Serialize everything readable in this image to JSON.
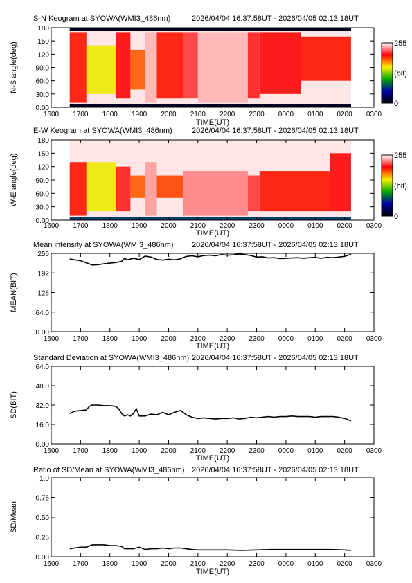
{
  "time_range": "2026/04/04 16:37:58UT - 2026/04/05 02:13:18UT",
  "x_axis": {
    "label": "TIME(UT)",
    "ticks": [
      "1600",
      "1700",
      "1800",
      "1900",
      "2000",
      "2100",
      "2200",
      "2300",
      "0000",
      "0100",
      "0200",
      "0300"
    ]
  },
  "colorbar": {
    "max_label": "255",
    "unit_label": "(bit)",
    "min_label": "0"
  },
  "chart_data": [
    {
      "type": "heatmap",
      "title": "S-N Keogram at SYOWA(WMI3_486nm)",
      "ylabel": "N-S angle(deg)",
      "yticks": [
        "0.00",
        "30.0",
        "60.0",
        "90.0",
        "120",
        "150",
        "180"
      ],
      "ylim": [
        0,
        180
      ],
      "xlim_hours": [
        16.0,
        27.0
      ],
      "data_range_hours": [
        16.63,
        26.22
      ],
      "colorscale": {
        "min": 0,
        "max": 255,
        "colors": [
          "#000000",
          "#0000aa",
          "#00aa00",
          "#ffee00",
          "#ff0000",
          "#ffffff"
        ]
      },
      "blocks": [
        {
          "t": [
            16.63,
            17.2
          ],
          "angle": [
            10,
            170
          ],
          "value": 200
        },
        {
          "t": [
            17.2,
            18.2
          ],
          "angle": [
            30,
            140
          ],
          "value": 150
        },
        {
          "t": [
            18.2,
            18.7
          ],
          "angle": [
            20,
            170
          ],
          "value": 205
        },
        {
          "t": [
            18.7,
            19.2
          ],
          "angle": [
            40,
            130
          ],
          "value": 185
        },
        {
          "t": [
            19.2,
            19.6
          ],
          "angle": [
            10,
            170
          ],
          "value": 240
        },
        {
          "t": [
            19.6,
            20.5
          ],
          "angle": [
            20,
            170
          ],
          "value": 200
        },
        {
          "t": [
            20.5,
            21.0
          ],
          "angle": [
            20,
            170
          ],
          "value": 215
        },
        {
          "t": [
            21.0,
            22.7
          ],
          "angle": [
            10,
            170
          ],
          "value": 240
        },
        {
          "t": [
            22.7,
            23.1
          ],
          "angle": [
            20,
            170
          ],
          "value": 210
        },
        {
          "t": [
            23.1,
            24.5
          ],
          "angle": [
            30,
            170
          ],
          "value": 205
        },
        {
          "t": [
            24.5,
            26.22
          ],
          "angle": [
            60,
            160
          ],
          "value": 200
        }
      ],
      "bottom_band_value": 10,
      "top_band_value": 10
    },
    {
      "type": "heatmap",
      "title": "E-W Keogram at SYOWA(WMI3_486nm)",
      "ylabel": "W-E angle(deg)",
      "yticks": [
        "0.00",
        "30.0",
        "60.0",
        "90.0",
        "120",
        "150",
        "180"
      ],
      "ylim": [
        0,
        180
      ],
      "xlim_hours": [
        16.0,
        27.0
      ],
      "data_range_hours": [
        16.63,
        26.22
      ],
      "colorscale": {
        "min": 0,
        "max": 255,
        "colors": [
          "#000000",
          "#0000aa",
          "#00aa00",
          "#ffee00",
          "#ff0000",
          "#ffffff"
        ]
      },
      "blocks": [
        {
          "t": [
            16.63,
            17.2
          ],
          "angle": [
            10,
            130
          ],
          "value": 200
        },
        {
          "t": [
            17.2,
            18.2
          ],
          "angle": [
            20,
            130
          ],
          "value": 150
        },
        {
          "t": [
            18.2,
            18.7
          ],
          "angle": [
            20,
            120
          ],
          "value": 210
        },
        {
          "t": [
            18.7,
            19.2
          ],
          "angle": [
            50,
            100
          ],
          "value": 185
        },
        {
          "t": [
            19.2,
            19.6
          ],
          "angle": [
            10,
            130
          ],
          "value": 235
        },
        {
          "t": [
            19.6,
            20.5
          ],
          "angle": [
            50,
            100
          ],
          "value": 190
        },
        {
          "t": [
            20.5,
            22.7
          ],
          "angle": [
            10,
            110
          ],
          "value": 230
        },
        {
          "t": [
            22.7,
            23.1
          ],
          "angle": [
            20,
            100
          ],
          "value": 215
        },
        {
          "t": [
            23.1,
            25.5
          ],
          "angle": [
            20,
            110
          ],
          "value": 200
        },
        {
          "t": [
            25.5,
            26.22
          ],
          "angle": [
            20,
            150
          ],
          "value": 205
        }
      ],
      "bottom_band_value": 70
    },
    {
      "type": "line",
      "title": "Mean intensity at SYOWA(WMI3_486nm)",
      "ylabel": "MEAN(BIT)",
      "yticks": [
        "0.00",
        "64.0",
        "128",
        "192",
        "256"
      ],
      "ylim": [
        0,
        256
      ],
      "xlim_hours": [
        16.0,
        27.0
      ],
      "series": [
        {
          "x": [
            16.63,
            16.8,
            17.0,
            17.2,
            17.4,
            17.6,
            17.8,
            18.0,
            18.2,
            18.4,
            18.5,
            18.6,
            18.8,
            19.0,
            19.2,
            19.4,
            19.6,
            19.8,
            20.0,
            20.2,
            20.4,
            20.6,
            20.8,
            21.0,
            21.2,
            21.4,
            21.6,
            21.8,
            22.0,
            22.2,
            22.4,
            22.6,
            22.8,
            23.0,
            23.2,
            23.4,
            23.6,
            23.8,
            24.0,
            24.2,
            24.4,
            24.6,
            24.8,
            25.0,
            25.2,
            25.4,
            25.6,
            25.8,
            26.0,
            26.22
          ],
          "y": [
            238,
            235,
            232,
            225,
            218,
            219,
            222,
            224,
            226,
            230,
            240,
            235,
            240,
            236,
            247,
            244,
            236,
            234,
            237,
            235,
            238,
            246,
            248,
            245,
            249,
            250,
            248,
            252,
            250,
            251,
            254,
            252,
            249,
            244,
            245,
            241,
            242,
            239,
            240,
            241,
            242,
            240,
            242,
            243,
            240,
            243,
            242,
            244,
            246,
            253
          ]
        }
      ]
    },
    {
      "type": "line",
      "title": "Standard Deviation at SYOWA(WMI3_486nm)",
      "ylabel": "SD(BIT)",
      "yticks": [
        "0.00",
        "16.0",
        "32.0",
        "48.0",
        "64.0"
      ],
      "ylim": [
        0,
        64
      ],
      "xlim_hours": [
        16.0,
        27.0
      ],
      "series": [
        {
          "x": [
            16.63,
            16.8,
            17.0,
            17.2,
            17.3,
            17.4,
            17.6,
            17.8,
            18.0,
            18.2,
            18.3,
            18.4,
            18.5,
            18.6,
            18.7,
            18.8,
            18.9,
            19.0,
            19.2,
            19.4,
            19.6,
            19.8,
            20.0,
            20.2,
            20.4,
            20.5,
            20.6,
            20.8,
            21.0,
            21.2,
            21.4,
            21.6,
            21.8,
            22.0,
            22.2,
            22.4,
            22.6,
            22.8,
            23.0,
            23.2,
            23.4,
            23.6,
            23.8,
            24.0,
            24.2,
            24.4,
            24.6,
            24.8,
            25.0,
            25.2,
            25.4,
            25.6,
            25.8,
            26.0,
            26.22
          ],
          "y": [
            25,
            27,
            27.5,
            28,
            31,
            32,
            32,
            31.5,
            31.5,
            31,
            29,
            25,
            23,
            24,
            23,
            25,
            29,
            23,
            23,
            24.5,
            24,
            26,
            24,
            26,
            27.5,
            26,
            24,
            22,
            21,
            21.5,
            21,
            20.5,
            21,
            21,
            21.5,
            20.5,
            21,
            22,
            21.5,
            22,
            22.5,
            22,
            22.5,
            22.5,
            23,
            22.5,
            22.5,
            22.5,
            22,
            22.5,
            22.5,
            22.5,
            22,
            21,
            19
          ]
        }
      ]
    },
    {
      "type": "line",
      "title": "Ratio of SD/Mean at SYOWA(WMI3_486nm)",
      "ylabel": "SD/Mean",
      "yticks": [
        "0.00",
        "0.25",
        "0.50",
        "0.75",
        "1.0"
      ],
      "ylim": [
        0,
        1
      ],
      "xlim_hours": [
        16.0,
        27.0
      ],
      "series": [
        {
          "x": [
            16.63,
            16.8,
            17.0,
            17.2,
            17.4,
            17.6,
            17.8,
            18.0,
            18.2,
            18.4,
            18.5,
            18.6,
            18.8,
            19.0,
            19.2,
            19.4,
            19.6,
            19.8,
            20.0,
            20.2,
            20.4,
            20.6,
            20.8,
            21.0,
            21.5,
            22.0,
            22.5,
            23.0,
            23.5,
            24.0,
            24.5,
            25.0,
            25.5,
            26.0,
            26.22
          ],
          "y": [
            0.1,
            0.11,
            0.12,
            0.12,
            0.15,
            0.15,
            0.15,
            0.14,
            0.14,
            0.13,
            0.1,
            0.1,
            0.1,
            0.12,
            0.09,
            0.1,
            0.1,
            0.11,
            0.1,
            0.11,
            0.11,
            0.1,
            0.09,
            0.085,
            0.085,
            0.085,
            0.08,
            0.085,
            0.09,
            0.09,
            0.09,
            0.09,
            0.09,
            0.085,
            0.08
          ]
        }
      ]
    }
  ]
}
